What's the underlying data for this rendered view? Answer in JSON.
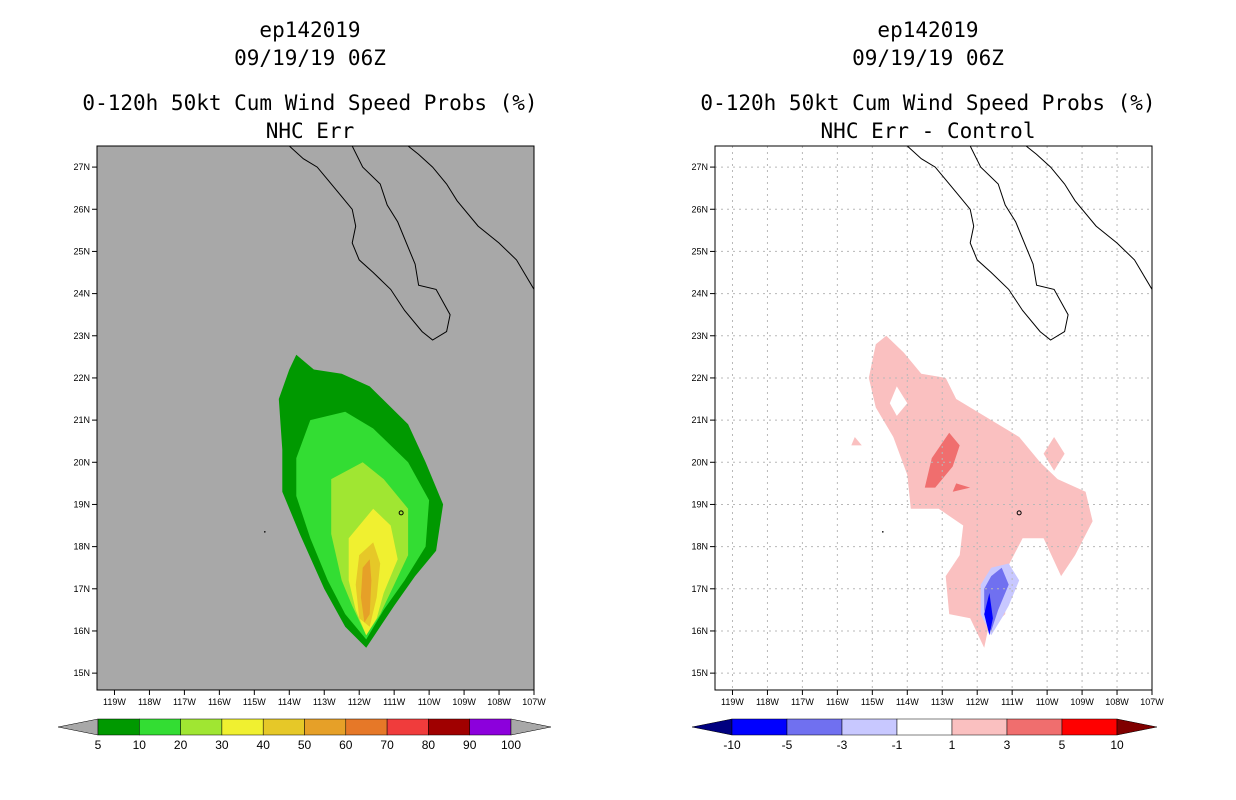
{
  "chart_data": [
    {
      "type": "contour-map",
      "id": "ep142019",
      "datetime": "09/19/19 06Z",
      "title": "0-120h 50kt Cum Wind Speed Probs (%)",
      "subtitle": "NHC Err",
      "xlim": [
        -119.5,
        -107
      ],
      "ylim": [
        14.6,
        27.5
      ],
      "x_ticks": [
        "119W",
        "118W",
        "117W",
        "116W",
        "115W",
        "114W",
        "113W",
        "112W",
        "111W",
        "110W",
        "109W",
        "108W",
        "107W"
      ],
      "y_ticks": [
        "15N",
        "16N",
        "17N",
        "18N",
        "19N",
        "20N",
        "21N",
        "22N",
        "23N",
        "24N",
        "25N",
        "26N",
        "27N"
      ],
      "grid": false,
      "background": "#a8a8a8",
      "colorbar": {
        "labels": [
          "5",
          "10",
          "20",
          "30",
          "40",
          "50",
          "60",
          "70",
          "80",
          "90",
          "100"
        ],
        "colors": [
          "#009900",
          "#33dd33",
          "#a0e632",
          "#f0f030",
          "#e6c828",
          "#e6a028",
          "#e67828",
          "#f03c3c",
          "#a00000",
          "#8c00dc"
        ],
        "low_color": "#a8a8a8",
        "high_color": "#a8a8a8"
      },
      "contours": [
        {
          "level": 5,
          "color": "#009900",
          "points": [
            [
              -113.8,
              22.55
            ],
            [
              -113.3,
              22.2
            ],
            [
              -112.5,
              22.1
            ],
            [
              -111.7,
              21.8
            ],
            [
              -110.6,
              20.9
            ],
            [
              -110.1,
              20.0
            ],
            [
              -109.6,
              19.0
            ],
            [
              -109.8,
              17.9
            ],
            [
              -110.4,
              17.3
            ],
            [
              -111.0,
              16.6
            ],
            [
              -111.8,
              15.6
            ],
            [
              -112.4,
              16.1
            ],
            [
              -113.0,
              17.0
            ],
            [
              -113.7,
              18.3
            ],
            [
              -114.2,
              19.3
            ],
            [
              -114.2,
              20.3
            ],
            [
              -114.3,
              21.5
            ],
            [
              -114.0,
              22.2
            ]
          ]
        },
        {
          "level": 10,
          "color": "#33dd33",
          "points": [
            [
              -113.4,
              21.0
            ],
            [
              -112.4,
              21.2
            ],
            [
              -111.6,
              20.8
            ],
            [
              -110.6,
              20.0
            ],
            [
              -110.0,
              19.1
            ],
            [
              -110.1,
              18.0
            ],
            [
              -110.7,
              17.2
            ],
            [
              -111.3,
              16.5
            ],
            [
              -111.8,
              15.8
            ],
            [
              -112.4,
              16.4
            ],
            [
              -112.9,
              17.2
            ],
            [
              -113.4,
              18.2
            ],
            [
              -113.8,
              19.2
            ],
            [
              -113.8,
              20.1
            ]
          ]
        },
        {
          "level": 20,
          "color": "#a0e632",
          "points": [
            [
              -112.8,
              19.6
            ],
            [
              -111.9,
              20.0
            ],
            [
              -111.3,
              19.6
            ],
            [
              -110.6,
              18.9
            ],
            [
              -110.6,
              17.8
            ],
            [
              -111.0,
              17.1
            ],
            [
              -111.4,
              16.4
            ],
            [
              -111.8,
              15.9
            ],
            [
              -112.2,
              16.6
            ],
            [
              -112.5,
              17.2
            ],
            [
              -112.8,
              18.3
            ]
          ]
        },
        {
          "level": 30,
          "color": "#f0f030",
          "points": [
            [
              -112.3,
              18.2
            ],
            [
              -111.6,
              18.9
            ],
            [
              -111.1,
              18.5
            ],
            [
              -110.9,
              17.7
            ],
            [
              -111.3,
              16.9
            ],
            [
              -111.5,
              16.3
            ],
            [
              -111.8,
              15.9
            ],
            [
              -112.1,
              16.5
            ],
            [
              -112.3,
              17.2
            ]
          ]
        },
        {
          "level": 40,
          "color": "#e6c828",
          "points": [
            [
              -112.0,
              17.8
            ],
            [
              -111.6,
              18.1
            ],
            [
              -111.4,
              17.6
            ],
            [
              -111.5,
              16.8
            ],
            [
              -111.7,
              16.1
            ],
            [
              -112.0,
              16.3
            ],
            [
              -112.1,
              17.1
            ]
          ]
        },
        {
          "level": 50,
          "color": "#e6a028",
          "points": [
            [
              -111.9,
              17.5
            ],
            [
              -111.7,
              17.7
            ],
            [
              -111.65,
              17.2
            ],
            [
              -111.7,
              16.4
            ],
            [
              -111.85,
              16.2
            ],
            [
              -111.95,
              16.8
            ]
          ]
        }
      ]
    },
    {
      "type": "contour-map",
      "id": "ep142019",
      "datetime": "09/19/19 06Z",
      "title": "0-120h 50kt Cum Wind Speed Probs (%)",
      "subtitle": "NHC Err - Control",
      "xlim": [
        -119.5,
        -107
      ],
      "ylim": [
        14.6,
        27.5
      ],
      "x_ticks": [
        "119W",
        "118W",
        "117W",
        "116W",
        "115W",
        "114W",
        "113W",
        "112W",
        "111W",
        "110W",
        "109W",
        "108W",
        "107W"
      ],
      "y_ticks": [
        "15N",
        "16N",
        "17N",
        "18N",
        "19N",
        "20N",
        "21N",
        "22N",
        "23N",
        "24N",
        "25N",
        "26N",
        "27N"
      ],
      "grid": true,
      "background": "#ffffff",
      "colorbar": {
        "labels": [
          "-10",
          "-5",
          "-3",
          "-1",
          "1",
          "3",
          "5",
          "10"
        ],
        "colors": [
          "#0000ff",
          "#7070f0",
          "#c8c8ff",
          "#ffffff",
          "#fac0c0",
          "#f06e6e",
          "#ff0000"
        ],
        "low_color": "#000080",
        "high_color": "#800000"
      },
      "contours": [
        {
          "level": 1,
          "color": "#fac0c0",
          "points": [
            [
              -114.6,
              23.0
            ],
            [
              -114.1,
              22.6
            ],
            [
              -113.6,
              22.1
            ],
            [
              -112.9,
              22.0
            ],
            [
              -112.6,
              21.5
            ],
            [
              -111.6,
              21.0
            ],
            [
              -110.8,
              20.6
            ],
            [
              -110.2,
              20.0
            ],
            [
              -109.7,
              19.6
            ],
            [
              -108.9,
              19.3
            ],
            [
              -108.7,
              18.6
            ],
            [
              -109.2,
              17.8
            ],
            [
              -109.6,
              17.3
            ],
            [
              -110.1,
              18.2
            ],
            [
              -110.7,
              18.2
            ],
            [
              -111.2,
              17.4
            ],
            [
              -111.2,
              16.4
            ],
            [
              -111.7,
              16.0
            ],
            [
              -111.8,
              15.6
            ],
            [
              -112.2,
              16.3
            ],
            [
              -112.8,
              16.4
            ],
            [
              -112.9,
              17.3
            ],
            [
              -112.5,
              17.8
            ],
            [
              -112.4,
              18.5
            ],
            [
              -113.1,
              18.9
            ],
            [
              -113.9,
              18.9
            ],
            [
              -114.0,
              19.7
            ],
            [
              -114.4,
              20.6
            ],
            [
              -114.9,
              21.3
            ],
            [
              -115.1,
              22.0
            ],
            [
              -114.9,
              22.8
            ]
          ]
        },
        {
          "level": -1,
          "color": "#ffffff",
          "points": [
            [
              -114.3,
              21.8
            ],
            [
              -114.0,
              21.4
            ],
            [
              -114.3,
              21.1
            ],
            [
              -114.5,
              21.4
            ]
          ]
        },
        {
          "level": 1,
          "color": "#fac0c0",
          "points": [
            [
              -109.8,
              20.6
            ],
            [
              -109.5,
              20.2
            ],
            [
              -109.8,
              19.8
            ],
            [
              -110.1,
              20.2
            ]
          ]
        },
        {
          "level": 1,
          "color": "#fac0c0",
          "points": [
            [
              -115.5,
              20.6
            ],
            [
              -115.3,
              20.4
            ],
            [
              -115.6,
              20.4
            ]
          ]
        },
        {
          "level": 3,
          "color": "#f06e6e",
          "points": [
            [
              -112.8,
              20.7
            ],
            [
              -112.5,
              20.4
            ],
            [
              -112.7,
              19.9
            ],
            [
              -113.2,
              19.4
            ],
            [
              -113.5,
              19.4
            ],
            [
              -113.3,
              20.1
            ]
          ]
        },
        {
          "level": 3,
          "color": "#f06e6e",
          "points": [
            [
              -112.6,
              19.5
            ],
            [
              -112.2,
              19.4
            ],
            [
              -112.7,
              19.3
            ]
          ]
        },
        {
          "level": -1,
          "color": "#c8c8ff",
          "points": [
            [
              -111.1,
              17.6
            ],
            [
              -110.8,
              17.2
            ],
            [
              -111.1,
              16.6
            ],
            [
              -111.3,
              16.3
            ],
            [
              -111.6,
              15.9
            ],
            [
              -111.9,
              16.4
            ],
            [
              -111.9,
              17.1
            ],
            [
              -111.6,
              17.5
            ]
          ]
        },
        {
          "level": -3,
          "color": "#7070f0",
          "points": [
            [
              -111.3,
              17.5
            ],
            [
              -111.1,
              17.1
            ],
            [
              -111.4,
              16.5
            ],
            [
              -111.6,
              16.0
            ],
            [
              -111.8,
              16.5
            ],
            [
              -111.8,
              17.0
            ],
            [
              -111.6,
              17.3
            ]
          ]
        },
        {
          "level": -5,
          "color": "#0000ff",
          "points": [
            [
              -111.65,
              16.9
            ],
            [
              -111.55,
              16.3
            ],
            [
              -111.65,
              15.9
            ],
            [
              -111.8,
              16.4
            ]
          ]
        }
      ]
    }
  ]
}
